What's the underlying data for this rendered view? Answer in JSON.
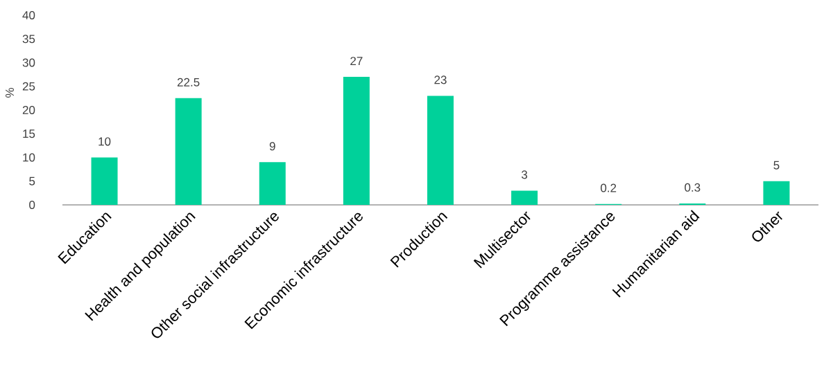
{
  "chart_data": {
    "type": "bar",
    "ylabel": "%",
    "categories": [
      "Education",
      "Health and population",
      "Other social infrastructure",
      "Economic infrastructure",
      "Production",
      "Multisector",
      "Programme assistance",
      "Humanitarian aid",
      "Other"
    ],
    "values": [
      10,
      22.5,
      9,
      27,
      23,
      3,
      0.2,
      0.3,
      5
    ],
    "color": "#00d19a",
    "ylim": [
      0,
      40
    ],
    "yticks": [
      0,
      5,
      10,
      15,
      20,
      25,
      30,
      35,
      40
    ],
    "data_labels": true
  }
}
